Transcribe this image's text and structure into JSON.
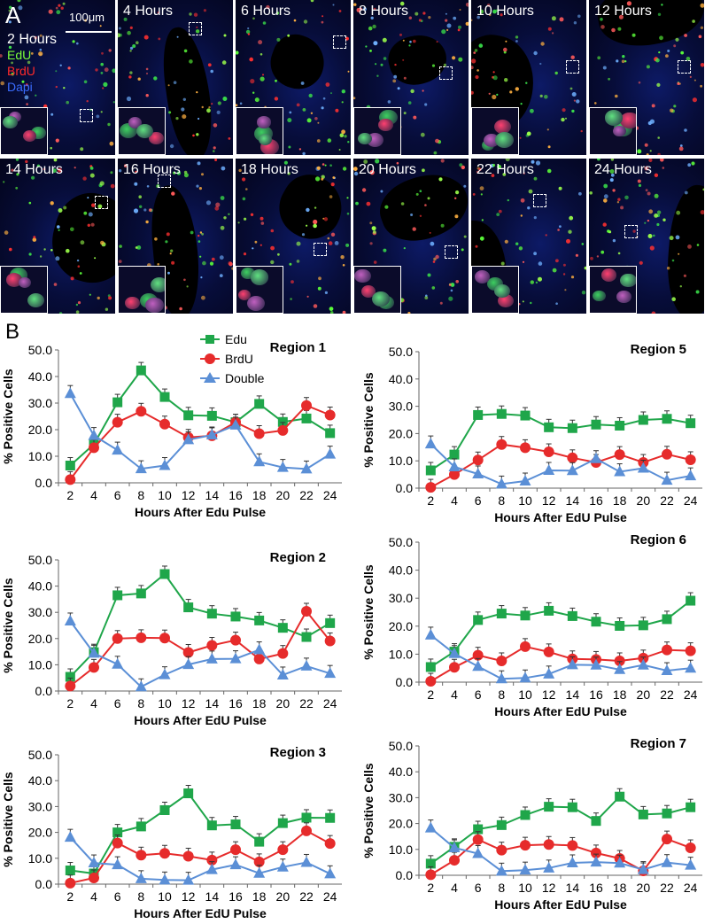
{
  "panel_a": {
    "letter": "A",
    "scale_bar_label": "100μm",
    "legend": [
      {
        "label": "2 Hours",
        "color": "#ffffff"
      },
      {
        "label": "EdU",
        "color": "#7dff3a"
      },
      {
        "label": "BrdU",
        "color": "#ff2a2a"
      },
      {
        "label": "Dapi",
        "color": "#3a6cff"
      }
    ],
    "tiles": [
      "",
      "4 Hours",
      "6 Hours",
      "8 Hours",
      "10 Hours",
      "12 Hours",
      "14 Hours",
      "16 Hours",
      "18 Hours",
      "20 Hours",
      "22 Hours",
      "24 Hours"
    ]
  },
  "panel_b": {
    "letter": "B",
    "legend": [
      {
        "label": "Edu",
        "color": "#1fa64a",
        "marker": "square"
      },
      {
        "label": "BrdU",
        "color": "#e62b2b",
        "marker": "circle"
      },
      {
        "label": "Double",
        "color": "#5b8fd6",
        "marker": "triangle"
      }
    ]
  },
  "chart_data": [
    {
      "type": "line",
      "title": "Region 1",
      "xlabel": "Hours After Edu Pulse",
      "ylabel": "% Positive Cells",
      "ylim": [
        0,
        50
      ],
      "yticks": [
        "0.0",
        "10.0",
        "20.0",
        "30.0",
        "40.0",
        "50.0"
      ],
      "x": [
        2,
        4,
        6,
        8,
        10,
        12,
        14,
        16,
        18,
        20,
        22,
        24
      ],
      "series": [
        {
          "name": "Edu",
          "values": [
            6.5,
            14.5,
            30.3,
            42.3,
            32.3,
            25.4,
            25.2,
            22.8,
            29.7,
            22.9,
            24.2,
            18.7
          ]
        },
        {
          "name": "BrdU",
          "values": [
            1.2,
            13.2,
            22.8,
            26.9,
            22.1,
            17.1,
            17.7,
            22.8,
            18.5,
            19.7,
            29.1,
            25.5
          ]
        },
        {
          "name": "Double",
          "values": [
            33.6,
            17.8,
            12.3,
            5.3,
            6.5,
            16.2,
            18.0,
            21.7,
            7.9,
            5.8,
            5.2,
            10.8
          ]
        }
      ]
    },
    {
      "type": "line",
      "title": "Region 5",
      "xlabel": "Hours After EdU Pulse",
      "ylabel": "% Positive Cells",
      "ylim": [
        0,
        50
      ],
      "yticks": [
        "0.0",
        "10.0",
        "20.0",
        "30.0",
        "40.0",
        "50.0"
      ],
      "x": [
        2,
        4,
        6,
        8,
        10,
        12,
        14,
        16,
        18,
        20,
        22,
        24
      ],
      "series": [
        {
          "name": "Edu",
          "values": [
            6.5,
            12.3,
            26.8,
            27.2,
            26.6,
            22.3,
            22.0,
            23.3,
            22.9,
            25.0,
            25.4,
            23.8
          ]
        },
        {
          "name": "BrdU",
          "values": [
            0.3,
            5.0,
            10.3,
            16.0,
            14.8,
            13.3,
            11.1,
            9.4,
            12.3,
            9.4,
            12.4,
            10.4
          ]
        },
        {
          "name": "Double",
          "values": [
            16.2,
            7.8,
            5.2,
            1.5,
            2.6,
            6.5,
            6.4,
            10.8,
            6.0,
            7.3,
            2.9,
            4.5
          ]
        }
      ]
    },
    {
      "type": "line",
      "title": "Region 2",
      "xlabel": "Hours After EdU Pulse",
      "ylabel": "% Positive Cells",
      "ylim": [
        0,
        50
      ],
      "yticks": [
        "0.0",
        "10.0",
        "20.0",
        "30.0",
        "40.0",
        "50.0"
      ],
      "x": [
        2,
        4,
        6,
        8,
        10,
        12,
        14,
        16,
        18,
        20,
        22,
        24
      ],
      "series": [
        {
          "name": "Edu",
          "values": [
            5.4,
            14.8,
            36.5,
            37.2,
            44.6,
            31.9,
            29.5,
            28.4,
            26.9,
            24.1,
            20.6,
            25.9
          ]
        },
        {
          "name": "BrdU",
          "values": [
            1.9,
            9.0,
            20.0,
            20.3,
            20.2,
            14.7,
            17.4,
            19.4,
            12.2,
            14.3,
            30.4,
            19.1
          ]
        },
        {
          "name": "Double",
          "values": [
            26.7,
            14.4,
            10.2,
            1.6,
            6.2,
            10.1,
            12.2,
            12.3,
            15.7,
            6.1,
            9.5,
            6.7
          ]
        }
      ]
    },
    {
      "type": "line",
      "title": "Region 6",
      "xlabel": "Hours After EdU Pulse",
      "ylabel": "% Positive Cells",
      "ylim": [
        0,
        50
      ],
      "yticks": [
        "0.0",
        "10.0",
        "20.0",
        "30.0",
        "40.0",
        "50.0"
      ],
      "x": [
        2,
        4,
        6,
        8,
        10,
        12,
        14,
        16,
        18,
        20,
        22,
        24
      ],
      "series": [
        {
          "name": "Edu",
          "values": [
            5.4,
            10.9,
            22.2,
            24.5,
            23.8,
            25.5,
            23.6,
            21.6,
            20.1,
            20.3,
            22.5,
            29.1
          ]
        },
        {
          "name": "BrdU",
          "values": [
            0.3,
            5.3,
            9.6,
            7.6,
            12.7,
            10.8,
            8.3,
            8.1,
            7.6,
            8.6,
            11.5,
            11.2
          ]
        },
        {
          "name": "Double",
          "values": [
            16.8,
            10.2,
            5.6,
            1.2,
            1.5,
            2.9,
            6.2,
            6.1,
            4.5,
            6.1,
            4.1,
            5.0
          ]
        }
      ]
    },
    {
      "type": "line",
      "title": "Region 3",
      "xlabel": "Hours After EdU Pulse",
      "ylabel": "% Positive Cells",
      "ylim": [
        0,
        50
      ],
      "yticks": [
        "0.0",
        "10.0",
        "20.0",
        "30.0",
        "40.0",
        "50.0"
      ],
      "x": [
        2,
        4,
        6,
        8,
        10,
        12,
        14,
        16,
        18,
        20,
        22,
        24
      ],
      "series": [
        {
          "name": "Edu",
          "values": [
            5.3,
            4.1,
            20.0,
            22.3,
            28.6,
            35.1,
            22.7,
            23.1,
            16.4,
            23.6,
            25.7,
            25.6
          ]
        },
        {
          "name": "BrdU",
          "values": [
            0.4,
            2.4,
            15.9,
            11.2,
            11.9,
            10.8,
            9.3,
            13.3,
            8.6,
            13.3,
            20.6,
            15.7
          ]
        },
        {
          "name": "Double",
          "values": [
            18.1,
            8.2,
            7.5,
            2.1,
            1.6,
            1.5,
            5.6,
            7.5,
            4.2,
            6.6,
            8.4,
            4.0
          ]
        }
      ]
    },
    {
      "type": "line",
      "title": "Region 7",
      "xlabel": "Hours After EdU Pulse",
      "ylabel": "% Positive Cells",
      "ylim": [
        0,
        50
      ],
      "yticks": [
        "0.0",
        "10.0",
        "20.0",
        "30.0",
        "40.0",
        "50.0"
      ],
      "x": [
        2,
        4,
        6,
        8,
        10,
        12,
        14,
        16,
        18,
        20,
        22,
        24
      ],
      "series": [
        {
          "name": "Edu",
          "values": [
            4.5,
            11.0,
            17.8,
            19.4,
            23.3,
            26.5,
            26.3,
            21.0,
            30.4,
            23.5,
            23.9,
            26.3
          ]
        },
        {
          "name": "BrdU",
          "values": [
            0.2,
            5.8,
            13.8,
            9.7,
            11.6,
            11.9,
            11.5,
            8.6,
            6.5,
            1.7,
            14.0,
            10.6
          ]
        },
        {
          "name": "Double",
          "values": [
            18.3,
            10.6,
            8.4,
            1.6,
            2.0,
            2.8,
            4.8,
            5.1,
            4.7,
            2.2,
            4.9,
            3.9
          ]
        }
      ]
    }
  ]
}
